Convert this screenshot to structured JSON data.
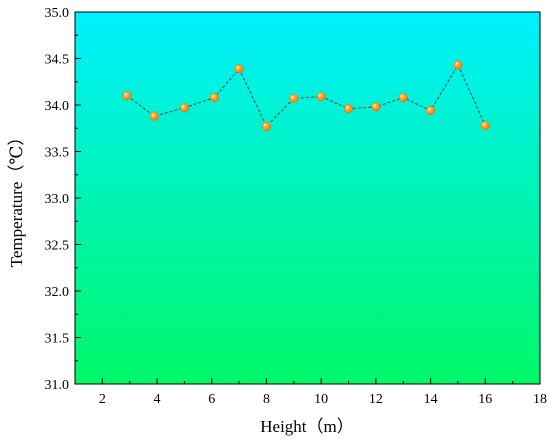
{
  "chart_data": {
    "type": "scatter",
    "xlabel": "Height（m）",
    "ylabel": "Temperature（℃）",
    "xlim": [
      1,
      18
    ],
    "ylim": [
      31.0,
      35.0
    ],
    "x_ticks": [
      "2",
      "4",
      "6",
      "8",
      "10",
      "12",
      "14",
      "16",
      "18"
    ],
    "y_ticks": [
      "31.0",
      "31.5",
      "32.0",
      "32.5",
      "33.0",
      "33.5",
      "34.0",
      "34.5",
      "35.0"
    ],
    "grid": false,
    "legend": "none",
    "colors": {
      "gradient_top": "#00f0ff",
      "gradient_bottom": "#00f868",
      "marker": "#f07a10",
      "line": "#333333"
    },
    "series": [
      {
        "x": [
          2.9,
          3.9,
          5.0,
          6.1,
          7.0,
          8.0,
          9.0,
          10.0,
          11.0,
          12.0,
          13.0,
          14.0,
          15.0,
          16.0
        ],
        "y": [
          34.1,
          33.88,
          33.97,
          34.08,
          34.39,
          33.77,
          34.07,
          34.09,
          33.96,
          33.98,
          34.08,
          33.94,
          34.43,
          33.78
        ]
      }
    ]
  }
}
